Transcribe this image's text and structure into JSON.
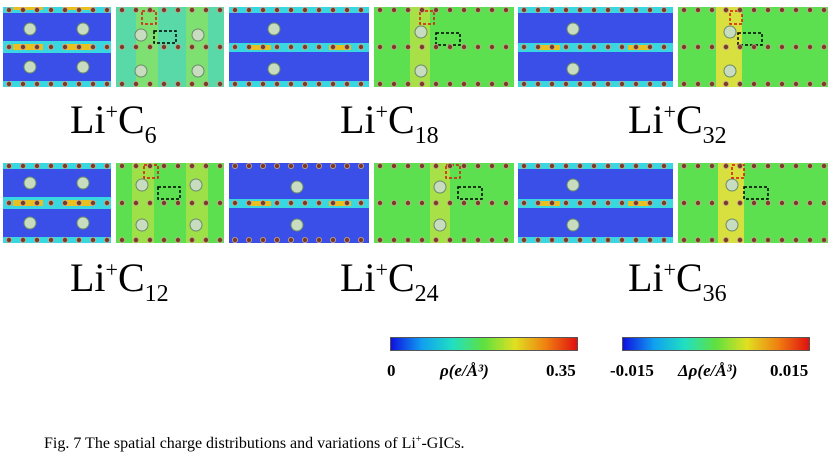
{
  "labels": [
    {
      "base": "Li",
      "sup": "+",
      "el": "C",
      "sub": "6"
    },
    {
      "base": "Li",
      "sup": "+",
      "el": "C",
      "sub": "18"
    },
    {
      "base": "Li",
      "sup": "+",
      "el": "C",
      "sub": "32"
    },
    {
      "base": "Li",
      "sup": "+",
      "el": "C",
      "sub": "12"
    },
    {
      "base": "Li",
      "sup": "+",
      "el": "C",
      "sub": "24"
    },
    {
      "base": "Li",
      "sup": "+",
      "el": "C",
      "sub": "36"
    }
  ],
  "colorbar_density": {
    "min": "0",
    "symbol": "ρ(e/Å³)",
    "max": "0.35"
  },
  "colorbar_difference": {
    "min": "-0.015",
    "symbol": "Δρ(e/Å³)",
    "max": "0.015"
  },
  "caption": {
    "prefix": "Fig. 7   The spatial charge distributions and variations of Li",
    "sup": "+",
    "suffix": "-GICs."
  },
  "colors": {
    "low": "#2b3fe0",
    "mid": "#4ce04c",
    "high": "#e8221a",
    "red_box": "#e01010",
    "black_box": "#000000"
  }
}
